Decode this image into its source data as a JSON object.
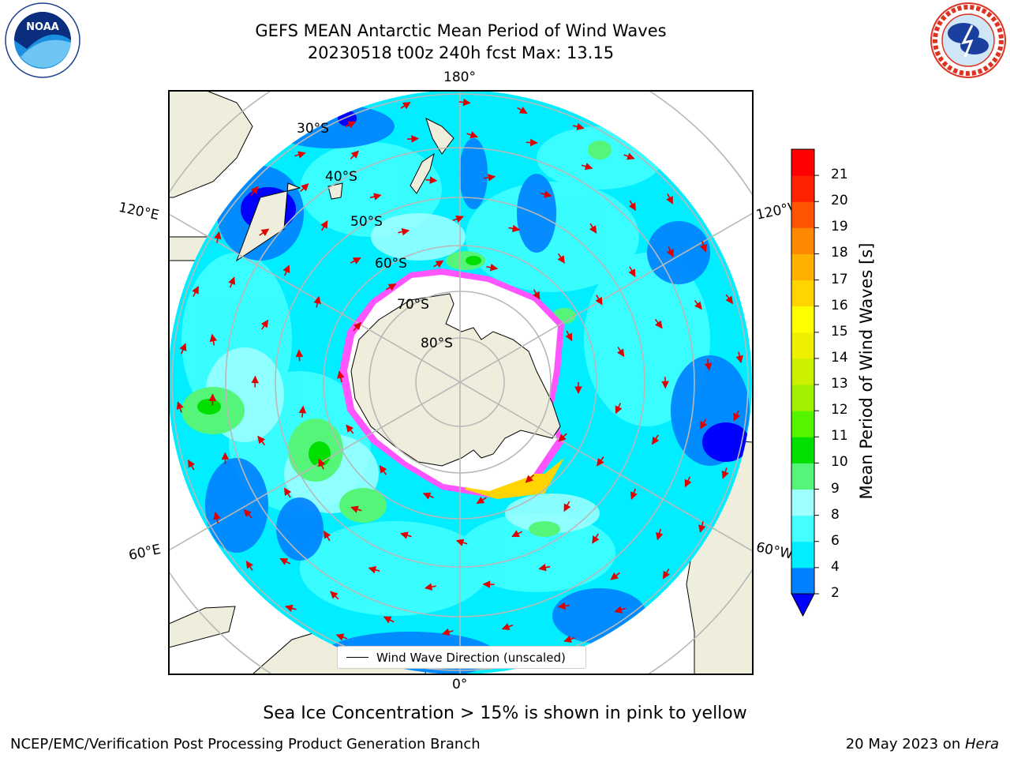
{
  "header": {
    "title_line1": "GEFS MEAN Antarctic Mean Period of Wind Waves",
    "title_line2": "20230518 t00z 240h fcst   Max: 13.15"
  },
  "logos": {
    "left": {
      "name": "noaa-logo",
      "text": "NOAA",
      "ring_text": "NATIONAL OCEANIC AND ATMOSPHERIC ADMINISTRATION · U.S. DEPARTMENT OF COMMERCE"
    },
    "right": {
      "name": "nws-logo",
      "ring_text": "NATIONAL WEATHER SERVICE"
    }
  },
  "map": {
    "projection": "south-polar-stereographic",
    "longitude_labels": {
      "top": "180°",
      "bottom": "0°",
      "left_upper": "120°E",
      "left_lower": "60°E",
      "right_upper": "120°W",
      "right_lower": "60°W"
    },
    "latitude_labels": [
      "30°S",
      "40°S",
      "50°S",
      "60°S",
      "70°S",
      "80°S"
    ],
    "legend_label": "Wind Wave Direction (unscaled)",
    "arrow_color": "#e00000",
    "land_color": "#efeedc"
  },
  "colorbar": {
    "label": "Mean Period of Wind Waves [s]",
    "ticks": [
      "2",
      "4",
      "6",
      "8",
      "9",
      "10",
      "11",
      "12",
      "13",
      "14",
      "15",
      "16",
      "17",
      "18",
      "19",
      "20",
      "21"
    ],
    "colors": [
      "#0080ff",
      "#00eeff",
      "#44ffff",
      "#a0ffff",
      "#55f57a",
      "#00e000",
      "#55f500",
      "#a0f000",
      "#cdf000",
      "#eef000",
      "#ffff00",
      "#ffd400",
      "#ffb000",
      "#ff8800",
      "#ff5500",
      "#ff2200",
      "#ff0000"
    ],
    "extend_color": "#0000ff"
  },
  "caption": "Sea Ice Concentration > 15% is shown in pink to yellow",
  "footer": {
    "left": "NCEP/EMC/Verification Post Processing Product Generation Branch",
    "right_date": "20 May 2023 on ",
    "right_machine": "Hera"
  }
}
